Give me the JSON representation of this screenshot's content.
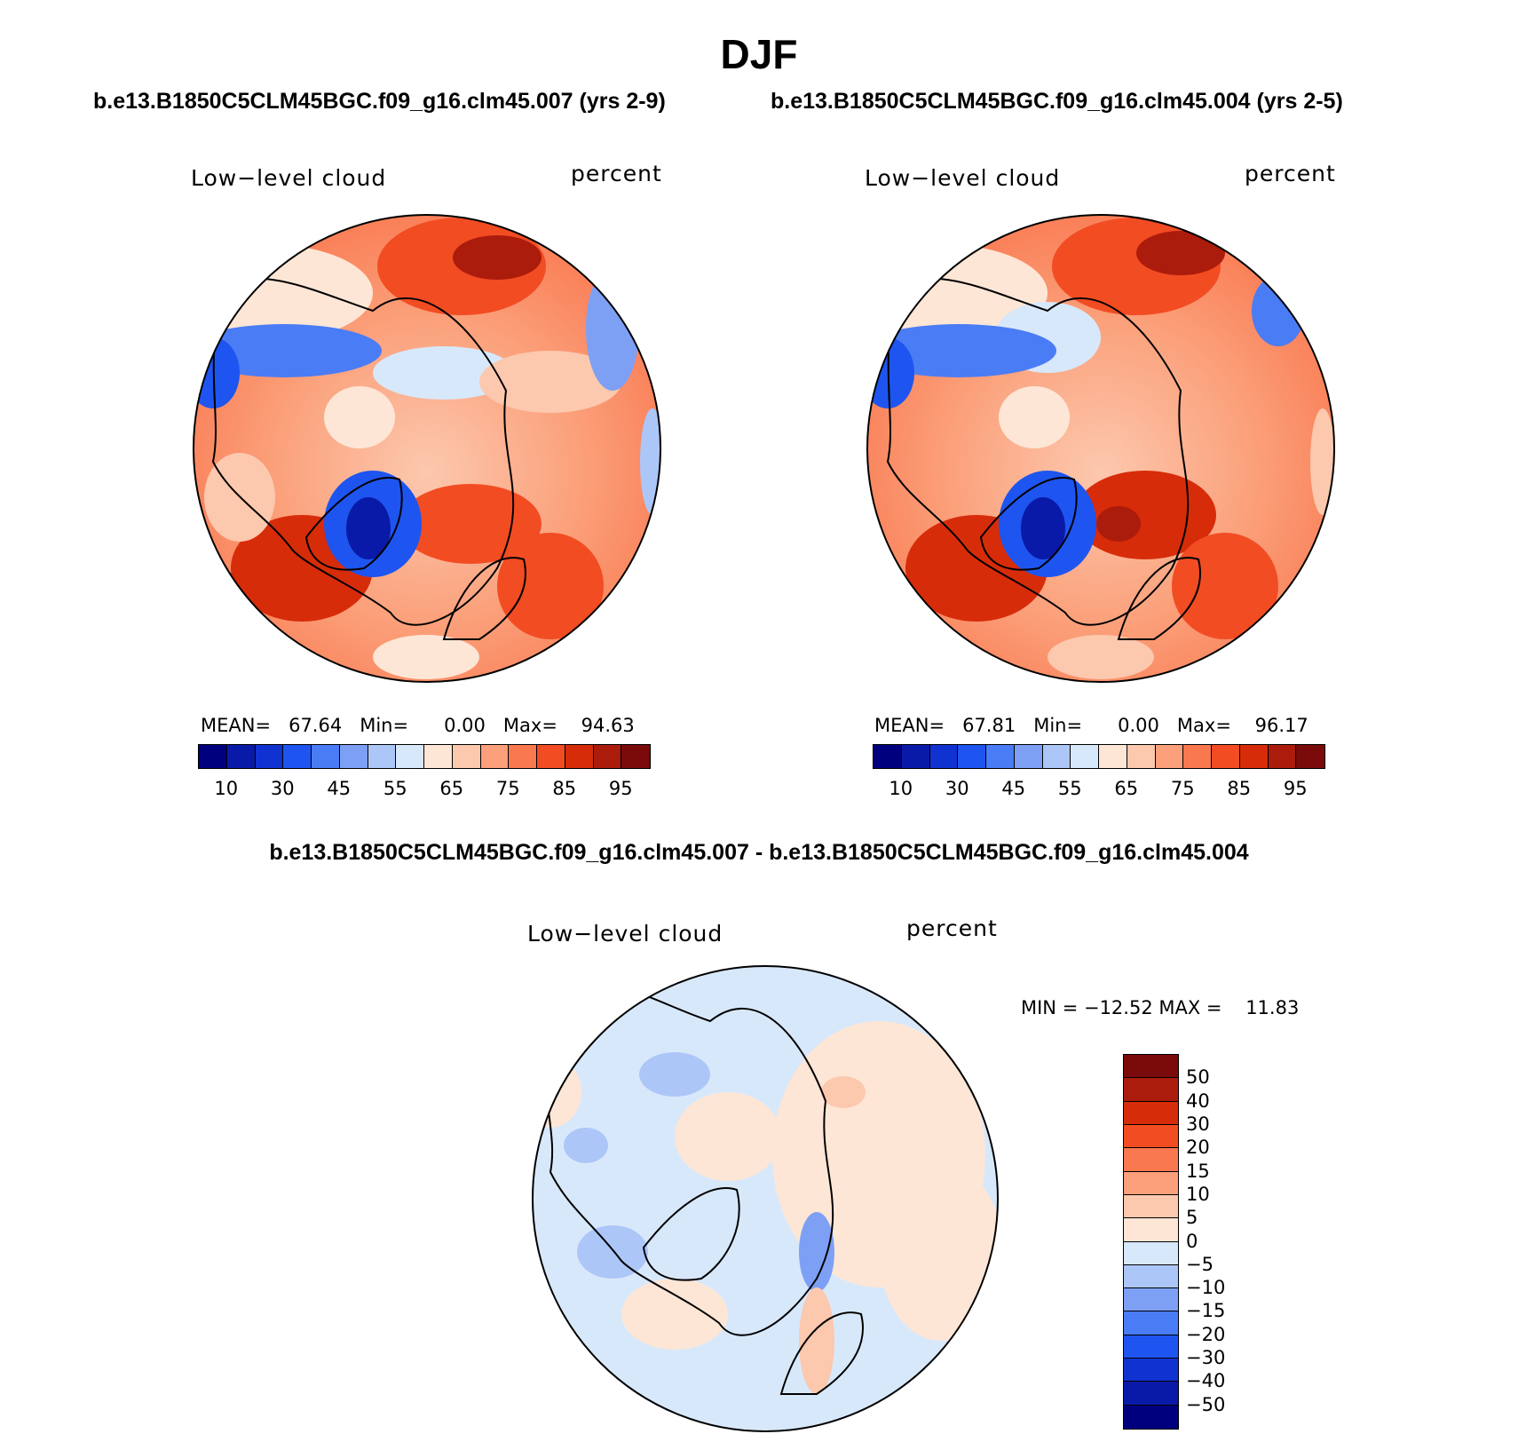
{
  "title": "DJF",
  "case1_title": "b.e13.B1850C5CLM45BGC.f09_g16.clm45.007 (yrs 2-9)",
  "case2_title": "b.e13.B1850C5CLM45BGC.f09_g16.clm45.004 (yrs 2-5)",
  "diff_title": "b.e13.B1850C5CLM45BGC.f09_g16.clm45.007 - b.e13.B1850C5CLM45BGC.f09_g16.clm45.004",
  "panels": [
    {
      "variable": "Low−level cloud",
      "units": "percent",
      "stats": "MEAN=   67.64   Min=      0.00   Max=    94.63",
      "mean": 67.64,
      "min": 0.0,
      "max": 94.63
    },
    {
      "variable": "Low−level cloud",
      "units": "percent",
      "stats": "MEAN=   67.81   Min=      0.00   Max=    96.17",
      "mean": 67.81,
      "min": 0.0,
      "max": 96.17
    },
    {
      "variable": "Low−level cloud",
      "units": "percent",
      "stats": "MIN = −12.52 MAX =    11.83",
      "min": -12.52,
      "max": 11.83
    }
  ],
  "colorbar_abs": {
    "labels": [
      "10",
      "30",
      "45",
      "55",
      "65",
      "75",
      "85",
      "95"
    ],
    "colors": [
      "#00007f",
      "#0a1aa8",
      "#1032d0",
      "#1e55f0",
      "#4a7cf5",
      "#7da0f5",
      "#adc6f8",
      "#d8e8fb",
      "#fde6d6",
      "#fcc8ae",
      "#fba07a",
      "#f97850",
      "#f24c23",
      "#d72c0a",
      "#ab1c0c",
      "#7b0a0a"
    ]
  },
  "colorbar_diff": {
    "labels": [
      "50",
      "40",
      "30",
      "20",
      "15",
      "10",
      "5",
      "0",
      "−5",
      "−10",
      "−15",
      "−20",
      "−30",
      "−40",
      "−50"
    ],
    "colors": [
      "#7b0a0a",
      "#ab1c0c",
      "#d72c0a",
      "#f24c23",
      "#f97850",
      "#fba07a",
      "#fcc8ae",
      "#fde6d6",
      "#d8e8fb",
      "#adc6f8",
      "#7da0f5",
      "#4a7cf5",
      "#1e55f0",
      "#1032d0",
      "#0a1aa8",
      "#00007f"
    ]
  }
}
